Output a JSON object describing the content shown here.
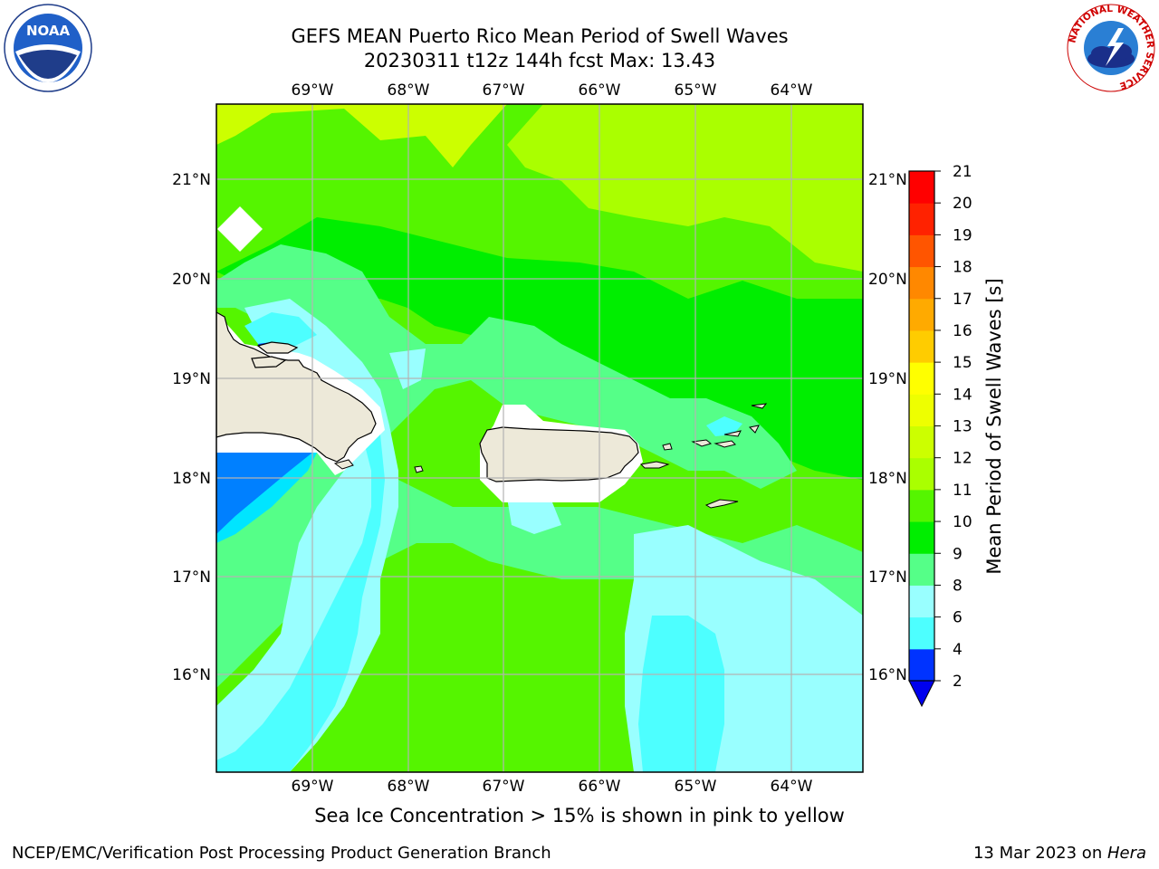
{
  "header": {
    "title_line1": "GEFS MEAN Puerto Rico Mean Period of Swell Waves",
    "title_line2": "20230311 t12z 144h fcst   Max: 13.43"
  },
  "logos": {
    "left": "NOAA",
    "right_ring_text": "NATIONAL WEATHER SERVICE"
  },
  "map": {
    "lon_labels": [
      "69°W",
      "68°W",
      "67°W",
      "66°W",
      "65°W",
      "64°W"
    ],
    "lat_labels": [
      "16°N",
      "17°N",
      "18°N",
      "19°N",
      "20°N",
      "21°N"
    ],
    "land_color": "#ede9d9",
    "grid_color": "#b3b3b3"
  },
  "colorbar": {
    "label": "Mean Period of Swell Waves [s]",
    "ticks": [
      "2",
      "4",
      "6",
      "8",
      "9",
      "10",
      "11",
      "12",
      "13",
      "14",
      "15",
      "16",
      "17",
      "18",
      "19",
      "20",
      "21"
    ],
    "colors": [
      "#0033ff",
      "#00e5ff",
      "#4dffff",
      "#99ffff",
      "#55ff88",
      "#00ee00",
      "#55f500",
      "#aaff00",
      "#ccff00",
      "#eeff00",
      "#ffff00",
      "#ffcc00",
      "#ffaa00",
      "#ff8800",
      "#ff5500",
      "#ff2200",
      "#ff0000"
    ],
    "under_color": "#0000ee"
  },
  "caption": "Sea Ice Concentration > 15% is shown in pink to yellow",
  "footer": {
    "left": "NCEP/EMC/Verification Post Processing Product Generation Branch",
    "right_prefix": "13 Mar 2023 on ",
    "right_italic": "Hera"
  }
}
